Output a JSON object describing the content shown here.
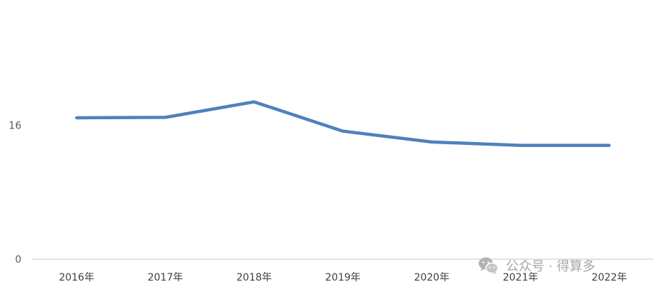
{
  "chart_data": {
    "type": "line",
    "categories": [
      "2016年",
      "2017年",
      "2018年",
      "2019年",
      "2020年",
      "2021年",
      "2022年"
    ],
    "series": [
      {
        "values": [
          16.9,
          16.95,
          18.8,
          15.3,
          14.0,
          13.6,
          13.6
        ],
        "color": "#4f81bd"
      }
    ],
    "yticks": [
      0,
      16
    ],
    "ylim": [
      0,
      32
    ],
    "grid": false,
    "legend": "none"
  },
  "watermark": {
    "text": "公众号 · 得算多",
    "icon": "wechat-icon"
  }
}
